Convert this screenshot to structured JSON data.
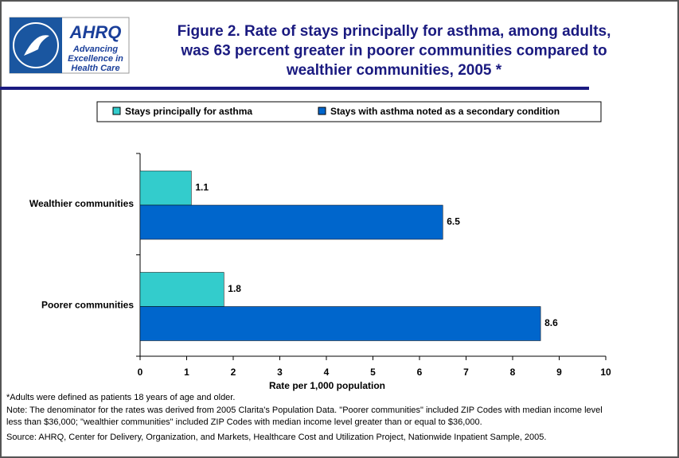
{
  "logo": {
    "name": "AHRQ",
    "tagline": [
      "Advancing",
      "Excellence in",
      "Health Care"
    ]
  },
  "chart_data": {
    "type": "bar",
    "orientation": "horizontal",
    "title": [
      "Figure 2. Rate of stays principally for asthma, among adults,",
      "was 63 percent greater in poorer communities compared to",
      "wealthier communities, 2005 *"
    ],
    "categories": [
      "Wealthier communities",
      "Poorer communities"
    ],
    "series": [
      {
        "name": "Stays principally for asthma",
        "color": "#33cccc",
        "values": [
          1.1,
          1.8
        ]
      },
      {
        "name": "Stays with asthma noted as a secondary condition",
        "color": "#0066cc",
        "values": [
          6.5,
          8.6
        ]
      }
    ],
    "xlim": [
      0,
      10
    ],
    "xticks": [
      0,
      1,
      2,
      3,
      4,
      5,
      6,
      7,
      8,
      9,
      10
    ],
    "xlabel": "Rate per 1,000 population",
    "notes": [
      "*Adults were defined as patients 18 years of age and older.",
      "Note: The denominator for the rates was derived from 2005 Clarita's Population Data. \"Poorer communities\" included ZIP Codes with median income level",
      "less than $36,000; \"wealthier communities\" included ZIP Codes with median income level greater than or equal to $36,000.",
      "Source: AHRQ, Center for Delivery, Organization, and Markets, Healthcare Cost and Utilization Project, Nationwide Inpatient Sample, 2005."
    ]
  }
}
